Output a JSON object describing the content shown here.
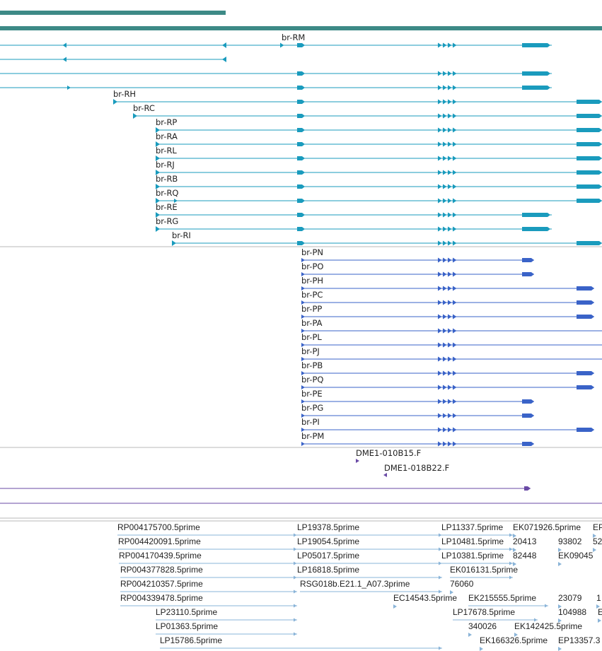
{
  "colors": {
    "top_bar": "#3d8a86",
    "transcript_r": "#1a9bbd",
    "transcript_p": "#3a63c8",
    "clone": "#6a4aa6",
    "est": "#8ab4d8",
    "divider": "#b8b8b8",
    "label": "#222222"
  },
  "transcripts_r": [
    {
      "label": "br-RM"
    },
    {
      "label": ""
    },
    {
      "label": ""
    },
    {
      "label": ""
    },
    {
      "label": "br-RH"
    },
    {
      "label": "br-RC"
    },
    {
      "label": "br-RP"
    },
    {
      "label": "br-RA"
    },
    {
      "label": "br-RL"
    },
    {
      "label": "br-RJ"
    },
    {
      "label": "br-RB"
    },
    {
      "label": "br-RQ"
    },
    {
      "label": "br-RE"
    },
    {
      "label": "br-RG"
    },
    {
      "label": "br-RI"
    }
  ],
  "transcripts_p": [
    {
      "label": "br-PN"
    },
    {
      "label": "br-PO"
    },
    {
      "label": "br-PH"
    },
    {
      "label": "br-PC"
    },
    {
      "label": "br-PP"
    },
    {
      "label": "br-PA"
    },
    {
      "label": "br-PL"
    },
    {
      "label": "br-PJ"
    },
    {
      "label": "br-PB"
    },
    {
      "label": "br-PQ"
    },
    {
      "label": "br-PE"
    },
    {
      "label": "br-PG"
    },
    {
      "label": "br-PI"
    },
    {
      "label": "br-PM"
    }
  ],
  "clones": [
    {
      "label": "DME1-010B15.F"
    },
    {
      "label": "DME1-018B22.F"
    }
  ],
  "ests": [
    {
      "label": "RP004175700.5prime"
    },
    {
      "label": "RP004420091.5prime"
    },
    {
      "label": "RP004170439.5prime"
    },
    {
      "label": "RP004377828.5prime"
    },
    {
      "label": "RP004210357.5prime"
    },
    {
      "label": "RP004339478.5prime"
    },
    {
      "label": "LP23110.5prime"
    },
    {
      "label": "LP01363.5prime"
    },
    {
      "label": "LP15786.5prime"
    },
    {
      "label": "LP19378.5prime"
    },
    {
      "label": "LP19054.5prime"
    },
    {
      "label": "LP05017.5prime"
    },
    {
      "label": "LP16818.5prime"
    },
    {
      "label": "RSG018b.E21.1_A07.3prime"
    },
    {
      "label": "EC14543.5prime"
    },
    {
      "label": "LP11337.5prime"
    },
    {
      "label": "LP10481.5prime"
    },
    {
      "label": "LP10381.5prime"
    },
    {
      "label": "EK016131.5prime"
    },
    {
      "label": "76060"
    },
    {
      "label": "EK215555.5prime"
    },
    {
      "label": "LP17678.5prime"
    },
    {
      "label": "340026"
    },
    {
      "label": "EK142425.5prime"
    },
    {
      "label": "EK166326.5prime"
    },
    {
      "label": "EK071926.5prime"
    },
    {
      "label": "20413"
    },
    {
      "label": "82448"
    },
    {
      "label": "93802"
    },
    {
      "label": "EK09045"
    },
    {
      "label": "23079"
    },
    {
      "label": "104988"
    },
    {
      "label": "EP13357.3"
    },
    {
      "label": "EP"
    },
    {
      "label": "52"
    },
    {
      "label": "1"
    },
    {
      "label": "E"
    }
  ]
}
